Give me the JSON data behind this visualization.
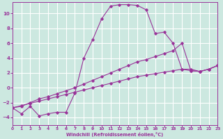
{
  "xlabel": "Windchill (Refroidissement éolien,°C)",
  "bg_color": "#cce8e0",
  "grid_color": "#ffffff",
  "line_color": "#993399",
  "xmin": 0,
  "xmax": 23,
  "ymin": -5,
  "ymax": 11.5,
  "yticks": [
    -4,
    -2,
    0,
    2,
    4,
    6,
    8,
    10
  ],
  "xticks": [
    0,
    1,
    2,
    3,
    4,
    5,
    6,
    7,
    8,
    9,
    10,
    11,
    12,
    13,
    14,
    15,
    16,
    17,
    18,
    19,
    20,
    21,
    22,
    23
  ],
  "series1_x": [
    0,
    1,
    2,
    3,
    4,
    5,
    6,
    7,
    8,
    9,
    10,
    11,
    12,
    13,
    14,
    15,
    16,
    17,
    18,
    19,
    20,
    21,
    22,
    23
  ],
  "series1_y": [
    -2.7,
    -3.5,
    -2.5,
    -3.8,
    -3.5,
    -3.3,
    -3.3,
    -0.7,
    4.0,
    6.5,
    9.3,
    11.0,
    11.2,
    11.2,
    11.1,
    10.5,
    7.3,
    7.5,
    6.0,
    2.5,
    2.5,
    2.2,
    2.5,
    3.0
  ],
  "series2_x": [
    0,
    1,
    2,
    3,
    4,
    5,
    6,
    7,
    8,
    9,
    10,
    11,
    12,
    13,
    14,
    15,
    16,
    17,
    18,
    19,
    20,
    21,
    22,
    23
  ],
  "series2_y": [
    -2.7,
    -2.5,
    -2.0,
    -1.5,
    -1.2,
    -0.8,
    -0.4,
    0.0,
    0.5,
    1.0,
    1.5,
    2.0,
    2.5,
    3.0,
    3.5,
    3.8,
    4.2,
    4.6,
    5.0,
    6.0,
    2.3,
    2.2,
    2.5,
    3.0
  ],
  "series3_x": [
    0,
    1,
    2,
    3,
    4,
    5,
    6,
    7,
    8,
    9,
    10,
    11,
    12,
    13,
    14,
    15,
    16,
    17,
    18,
    19,
    20,
    21,
    22,
    23
  ],
  "series3_y": [
    -2.7,
    -2.4,
    -2.1,
    -1.8,
    -1.5,
    -1.2,
    -0.9,
    -0.6,
    -0.3,
    0.0,
    0.3,
    0.6,
    0.9,
    1.2,
    1.5,
    1.7,
    1.9,
    2.1,
    2.3,
    2.5,
    2.3,
    2.2,
    2.5,
    3.0
  ]
}
